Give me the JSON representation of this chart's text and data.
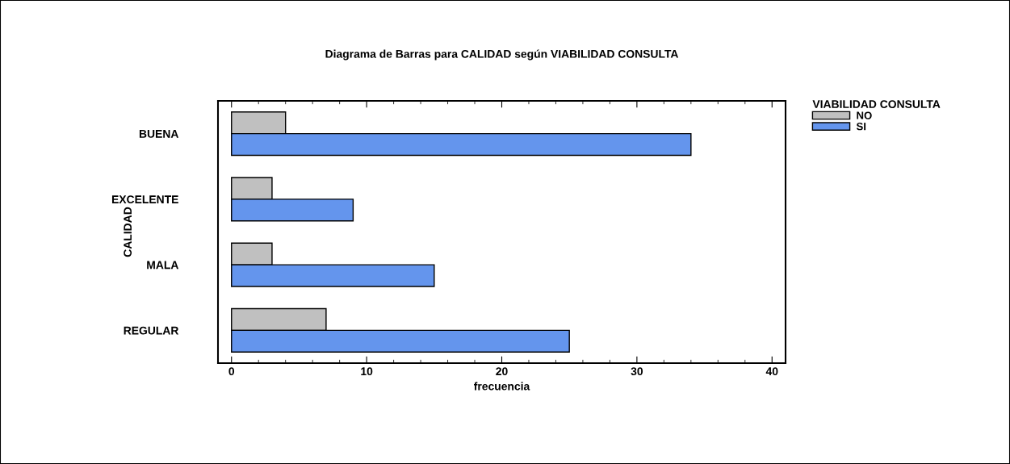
{
  "chart_data": {
    "type": "bar",
    "orientation": "horizontal",
    "title": "Diagrama de Barras para CALIDAD según VIABILIDAD CONSULTA",
    "xlabel": "frecuencia",
    "ylabel": "CALIDAD",
    "legend_title": "VIABILIDAD CONSULTA",
    "legend": "top right",
    "categories": [
      "BUENA",
      "EXCELENTE",
      "MALA",
      "REGULAR"
    ],
    "series": [
      {
        "name": "NO",
        "color": "#c0c0c0",
        "values": [
          4,
          3,
          3,
          7
        ]
      },
      {
        "name": "SI",
        "color": "#6495ed",
        "values": [
          34,
          9,
          15,
          25
        ]
      }
    ],
    "xlim": [
      -1,
      41
    ],
    "xticks": [
      0,
      {
        "value": 2,
        "label": null
      },
      {
        "value": 4,
        "label": null
      },
      {
        "value": 6,
        "label": null
      },
      {
        "value": 8,
        "label": null
      },
      10,
      {
        "value": 12,
        "label": null
      },
      {
        "value": 14,
        "label": null
      },
      {
        "value": 16,
        "label": null
      },
      {
        "value": 18,
        "label": null
      },
      20,
      {
        "value": 22,
        "label": null
      },
      {
        "value": 24,
        "label": null
      },
      {
        "value": 26,
        "label": null
      },
      {
        "value": 28,
        "label": null
      },
      30,
      {
        "value": 32,
        "label": null
      },
      {
        "value": 34,
        "label": null
      },
      {
        "value": 36,
        "label": null
      },
      {
        "value": 38,
        "label": null
      },
      40
    ],
    "grid": false
  }
}
